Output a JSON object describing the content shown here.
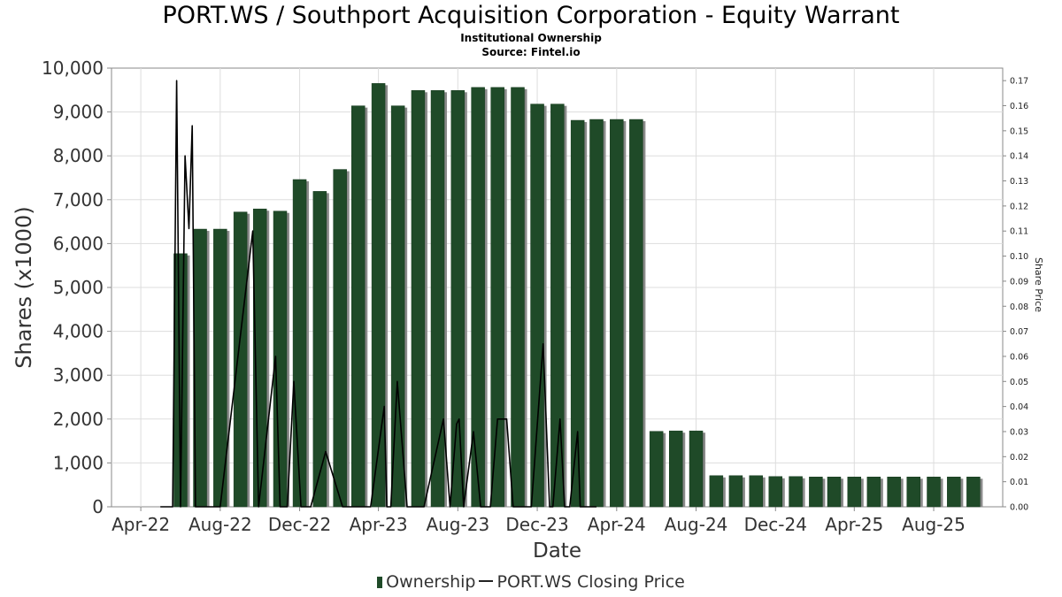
{
  "title": "PORT.WS / Southport Acquisition Corporation - Equity Warrant",
  "subtitle1": "Institutional Ownership",
  "subtitle2": "Source: Fintel.io",
  "legend": {
    "ownership": "Ownership",
    "price": "PORT.WS Closing Price"
  },
  "colors": {
    "bar": "#1f4a28",
    "bar_shadow": "#8a8a8a",
    "line": "#000000",
    "grid": "#dddddd"
  },
  "chart_data": {
    "type": "bar",
    "xlabel": "Date",
    "ylabel": "Shares (x1000)",
    "y2label": "Share Price",
    "ylim": [
      0,
      10000
    ],
    "y2lim": [
      0,
      0.175
    ],
    "yticks": [
      "0",
      "1,000",
      "2,000",
      "3,000",
      "4,000",
      "5,000",
      "6,000",
      "7,000",
      "8,000",
      "9,000",
      "10,000"
    ],
    "y2ticks": [
      "0.00",
      "0.01",
      "0.02",
      "0.03",
      "0.04",
      "0.05",
      "0.06",
      "0.07",
      "0.08",
      "0.09",
      "0.10",
      "0.11",
      "0.12",
      "0.13",
      "0.14",
      "0.15",
      "0.16",
      "0.17"
    ],
    "xtick_labels": [
      "Apr-22",
      "Aug-22",
      "Dec-22",
      "Apr-23",
      "Aug-23",
      "Dec-23",
      "Apr-24",
      "Aug-24",
      "Dec-24",
      "Apr-25",
      "Aug-25"
    ],
    "x_range": [
      "2022-02-15",
      "2025-11-15"
    ],
    "grid": true,
    "legend_position": "bottom",
    "series": [
      {
        "name": "Ownership",
        "type": "bar",
        "x": [
          "2022-06-01",
          "2022-07-01",
          "2022-08-01",
          "2022-09-01",
          "2022-10-01",
          "2022-11-01",
          "2022-12-01",
          "2023-01-01",
          "2023-02-01",
          "2023-03-01",
          "2023-04-01",
          "2023-05-01",
          "2023-06-01",
          "2023-07-01",
          "2023-08-01",
          "2023-09-01",
          "2023-10-01",
          "2023-11-01",
          "2023-12-01",
          "2024-01-01",
          "2024-02-01",
          "2024-03-01",
          "2024-04-01",
          "2024-05-01",
          "2024-06-01",
          "2024-07-01",
          "2024-08-01",
          "2024-09-01",
          "2024-10-01",
          "2024-11-01",
          "2024-12-01",
          "2025-01-01",
          "2025-02-01",
          "2025-03-01",
          "2025-04-01",
          "2025-05-01",
          "2025-06-01",
          "2025-07-01",
          "2025-08-01",
          "2025-09-01",
          "2025-10-01"
        ],
        "values": [
          5770,
          6330,
          6330,
          6720,
          6790,
          6740,
          7460,
          7190,
          7690,
          9140,
          9650,
          9140,
          9490,
          9490,
          9490,
          9560,
          9560,
          9560,
          9180,
          9180,
          8810,
          8830,
          8830,
          8830,
          1720,
          1730,
          1730,
          710,
          710,
          710,
          690,
          690,
          680,
          680,
          680,
          680,
          680,
          680,
          680,
          680,
          680
        ]
      },
      {
        "name": "PORT.WS Closing Price",
        "type": "line",
        "x": [
          "2022-05-01",
          "2022-05-20",
          "2022-05-26",
          "2022-06-01",
          "2022-06-08",
          "2022-06-14",
          "2022-06-19",
          "2022-06-24",
          "2022-07-02",
          "2022-08-01",
          "2022-09-20",
          "2022-09-29",
          "2022-10-25",
          "2022-11-01",
          "2022-11-12",
          "2022-11-22",
          "2022-12-03",
          "2022-12-08",
          "2022-12-18",
          "2023-01-10",
          "2023-02-05",
          "2023-02-26",
          "2023-03-20",
          "2023-04-10",
          "2023-04-14",
          "2023-04-20",
          "2023-04-30",
          "2023-05-15",
          "2023-05-30",
          "2023-06-10",
          "2023-07-10",
          "2023-07-20",
          "2023-07-30",
          "2023-08-03",
          "2023-08-10",
          "2023-08-25",
          "2023-09-05",
          "2023-09-20",
          "2023-10-01",
          "2023-10-15",
          "2023-10-25",
          "2023-11-02",
          "2023-11-12",
          "2023-11-22",
          "2023-12-10",
          "2023-12-20",
          "2023-12-25",
          "2024-01-05",
          "2024-01-12",
          "2024-01-20",
          "2024-02-01",
          "2024-02-05",
          "2024-03-01"
        ],
        "values": [
          0.0,
          0.0,
          0.17,
          0.0,
          0.14,
          0.111,
          0.152,
          0.0,
          0.0,
          0.0,
          0.11,
          0.0,
          0.06,
          0.0,
          0.0,
          0.05,
          0.0,
          0.0,
          0.0,
          0.022,
          0.0,
          0.0,
          0.0,
          0.04,
          0.0,
          0.0,
          0.05,
          0.0,
          0.0,
          0.0,
          0.035,
          0.0,
          0.033,
          0.035,
          0.0,
          0.03,
          0.0,
          0.0,
          0.035,
          0.035,
          0.0,
          0.0,
          0.0,
          0.0,
          0.065,
          0.0,
          0.0,
          0.035,
          0.0,
          0.0,
          0.03,
          0.0,
          0.0
        ]
      }
    ]
  }
}
